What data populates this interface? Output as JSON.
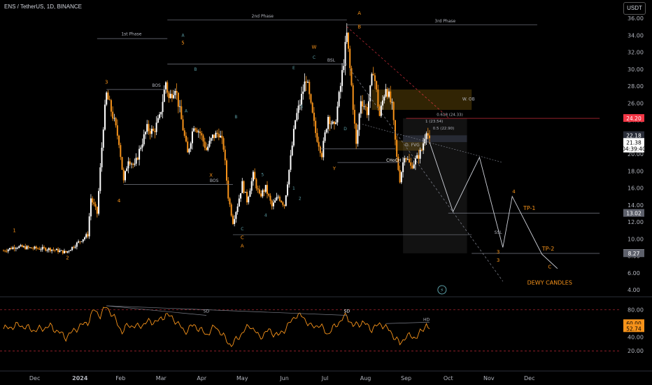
{
  "header": {
    "symbol_title": "ENS / TetherUS, 1D, BINANCE",
    "currency_badge": "USDT"
  },
  "colors": {
    "up": "#ffffff",
    "down": "#f7931a",
    "wave_orange": "#f7931a",
    "wave_teal": "#5b9ea6",
    "osc_line": "#f7931a",
    "grid_text": "#b2b5be",
    "price_red": "#f23645",
    "dashed_red": "#f23645"
  },
  "chart_data": [
    {
      "type": "candlestick",
      "title": "ENS / TetherUS, 1D, BINANCE",
      "x_labels": [
        "Dec",
        "2024",
        "Feb",
        "Mar",
        "Apr",
        "May",
        "Jun",
        "Jul",
        "Aug",
        "Sep",
        "Oct",
        "Nov",
        "Dec"
      ],
      "y_ticks": [
        4,
        6,
        8,
        10,
        12,
        14,
        16,
        18,
        20,
        22,
        24,
        26,
        28,
        30,
        32,
        34,
        36
      ],
      "ylim": [
        3.5,
        36.8
      ],
      "close_path": [
        {
          "t": 0,
          "v": 8.6
        },
        {
          "t": 8,
          "v": 9.1
        },
        {
          "t": 18,
          "v": 8.9
        },
        {
          "t": 30,
          "v": 8.8
        },
        {
          "t": 40,
          "v": 8.4
        },
        {
          "t": 48,
          "v": 9.6
        },
        {
          "t": 54,
          "v": 10.5
        },
        {
          "t": 56,
          "v": 14.8
        },
        {
          "t": 60,
          "v": 13.0
        },
        {
          "t": 64,
          "v": 23.4
        },
        {
          "t": 66,
          "v": 27.0
        },
        {
          "t": 70,
          "v": 24.5
        },
        {
          "t": 74,
          "v": 21.5
        },
        {
          "t": 77,
          "v": 16.7
        },
        {
          "t": 80,
          "v": 19.5
        },
        {
          "t": 84,
          "v": 18.5
        },
        {
          "t": 88,
          "v": 21.0
        },
        {
          "t": 92,
          "v": 23.0
        },
        {
          "t": 96,
          "v": 22.6
        },
        {
          "t": 100,
          "v": 24.2
        },
        {
          "t": 104,
          "v": 28.5
        },
        {
          "t": 106,
          "v": 26.5
        },
        {
          "t": 110,
          "v": 28.0
        },
        {
          "t": 114,
          "v": 24.0
        },
        {
          "t": 118,
          "v": 20.0
        },
        {
          "t": 122,
          "v": 23.5
        },
        {
          "t": 126,
          "v": 22.5
        },
        {
          "t": 130,
          "v": 20.5
        },
        {
          "t": 134,
          "v": 22.0
        },
        {
          "t": 138,
          "v": 22.5
        },
        {
          "t": 141,
          "v": 20.8
        },
        {
          "t": 144,
          "v": 15.0
        },
        {
          "t": 147,
          "v": 12.0
        },
        {
          "t": 150,
          "v": 14.0
        },
        {
          "t": 153,
          "v": 16.5
        },
        {
          "t": 156,
          "v": 14.5
        },
        {
          "t": 160,
          "v": 17.5
        },
        {
          "t": 164,
          "v": 15.0
        },
        {
          "t": 168,
          "v": 16.0
        },
        {
          "t": 172,
          "v": 13.8
        },
        {
          "t": 176,
          "v": 15.0
        },
        {
          "t": 180,
          "v": 14.0
        },
        {
          "t": 184,
          "v": 19.5
        },
        {
          "t": 187,
          "v": 24.0
        },
        {
          "t": 190,
          "v": 26.0
        },
        {
          "t": 194,
          "v": 29.0
        },
        {
          "t": 197,
          "v": 25.5
        },
        {
          "t": 200,
          "v": 22.5
        },
        {
          "t": 204,
          "v": 20.0
        },
        {
          "t": 208,
          "v": 24.5
        },
        {
          "t": 212,
          "v": 23.0
        },
        {
          "t": 216,
          "v": 28.0
        },
        {
          "t": 220,
          "v": 34.0
        },
        {
          "t": 223,
          "v": 28.0
        },
        {
          "t": 226,
          "v": 21.0
        },
        {
          "t": 229,
          "v": 26.5
        },
        {
          "t": 233,
          "v": 25.0
        },
        {
          "t": 237,
          "v": 30.0
        },
        {
          "t": 241,
          "v": 24.5
        },
        {
          "t": 245,
          "v": 28.0
        },
        {
          "t": 249,
          "v": 25.5
        },
        {
          "t": 252,
          "v": 19.5
        },
        {
          "t": 254,
          "v": 17.0
        },
        {
          "t": 257,
          "v": 20.0
        },
        {
          "t": 261,
          "v": 18.5
        },
        {
          "t": 265,
          "v": 19.5
        },
        {
          "t": 268,
          "v": 20.5
        },
        {
          "t": 271,
          "v": 23.0
        },
        {
          "t": 273,
          "v": 21.4
        }
      ],
      "annotations": {
        "phases": [
          "1st Phase",
          "2nd Phase",
          "3rd Phase"
        ],
        "structure_labels": [
          "BOS",
          "BOS",
          "BSL",
          "CHoCH",
          "D. FVG",
          "W. OB",
          "SSL"
        ],
        "fib_labels": [
          "0.618 (24.33)",
          "1 (23.54)",
          "0.5 (22.90)"
        ],
        "targets": [
          "TP-1",
          "TP-2"
        ],
        "watermark": "DEWY CANDLES",
        "orange_wave_labels": [
          "1",
          "2",
          "3",
          "4",
          "5",
          "W",
          "X",
          "Y",
          "A",
          "B",
          "C",
          "4",
          "3",
          "C"
        ],
        "teal_wave_labels": [
          "A",
          "B",
          "C",
          "1",
          "2",
          "3",
          "4",
          "5",
          "A",
          "B",
          "C",
          "D",
          "E"
        ]
      },
      "price_labels": [
        {
          "text": "24.21",
          "v": 24.21,
          "bg": "#000000",
          "fg": "#f7931a"
        },
        {
          "text": "24.20",
          "v": 24.2,
          "bg": "#f23645",
          "fg": "#ffffff"
        },
        {
          "text": "22.18",
          "v": 22.18,
          "bg": "#2a2e39",
          "fg": "#ffffff"
        },
        {
          "text": "21.38",
          "v": 21.38,
          "bg": "#ffffff",
          "fg": "#000000"
        },
        {
          "text": "04:39:40",
          "v": 20.6,
          "bg": "#ffffff",
          "fg": "#000000"
        },
        {
          "text": "13.02",
          "v": 13.02,
          "bg": "#5d606b",
          "fg": "#ffffff"
        },
        {
          "text": "8.29",
          "v": 8.29,
          "bg": "#ffffff",
          "fg": "#000000"
        },
        {
          "text": "8.27",
          "v": 8.27,
          "bg": "#5d606b",
          "fg": "#ffffff"
        }
      ]
    },
    {
      "type": "line",
      "title": "",
      "y_ticks": [
        20,
        40,
        60,
        80
      ],
      "ylim": [
        10,
        92
      ],
      "levels": [
        80,
        20
      ],
      "series": [
        {
          "name": "",
          "points": [
            {
              "t": 0,
              "v": 52
            },
            {
              "t": 10,
              "v": 58
            },
            {
              "t": 20,
              "v": 50
            },
            {
              "t": 30,
              "v": 56
            },
            {
              "t": 40,
              "v": 40
            },
            {
              "t": 48,
              "v": 55
            },
            {
              "t": 54,
              "v": 62
            },
            {
              "t": 58,
              "v": 80
            },
            {
              "t": 62,
              "v": 72
            },
            {
              "t": 66,
              "v": 85
            },
            {
              "t": 70,
              "v": 72
            },
            {
              "t": 76,
              "v": 48
            },
            {
              "t": 80,
              "v": 58
            },
            {
              "t": 86,
              "v": 55
            },
            {
              "t": 92,
              "v": 62
            },
            {
              "t": 100,
              "v": 64
            },
            {
              "t": 104,
              "v": 74
            },
            {
              "t": 110,
              "v": 65
            },
            {
              "t": 116,
              "v": 48
            },
            {
              "t": 122,
              "v": 58
            },
            {
              "t": 130,
              "v": 44
            },
            {
              "t": 136,
              "v": 56
            },
            {
              "t": 142,
              "v": 38
            },
            {
              "t": 146,
              "v": 28
            },
            {
              "t": 152,
              "v": 44
            },
            {
              "t": 158,
              "v": 58
            },
            {
              "t": 164,
              "v": 40
            },
            {
              "t": 170,
              "v": 50
            },
            {
              "t": 176,
              "v": 42
            },
            {
              "t": 182,
              "v": 56
            },
            {
              "t": 187,
              "v": 72
            },
            {
              "t": 192,
              "v": 70
            },
            {
              "t": 197,
              "v": 55
            },
            {
              "t": 202,
              "v": 58
            },
            {
              "t": 208,
              "v": 45
            },
            {
              "t": 214,
              "v": 60
            },
            {
              "t": 220,
              "v": 72
            },
            {
              "t": 224,
              "v": 56
            },
            {
              "t": 230,
              "v": 62
            },
            {
              "t": 236,
              "v": 52
            },
            {
              "t": 242,
              "v": 60
            },
            {
              "t": 248,
              "v": 48
            },
            {
              "t": 254,
              "v": 30
            },
            {
              "t": 258,
              "v": 42
            },
            {
              "t": 264,
              "v": 40
            },
            {
              "t": 268,
              "v": 48
            },
            {
              "t": 271,
              "v": 60
            },
            {
              "t": 273,
              "v": 52.74
            }
          ]
        }
      ],
      "divergence_labels": [
        "SD",
        "SD",
        "HD"
      ],
      "price_labels": [
        {
          "text": "60.00",
          "v": 60.0,
          "bg": "#f7931a",
          "fg": "#000000"
        },
        {
          "text": "52.74",
          "v": 52.74,
          "bg": "#f7931a",
          "fg": "#000000"
        }
      ]
    }
  ]
}
